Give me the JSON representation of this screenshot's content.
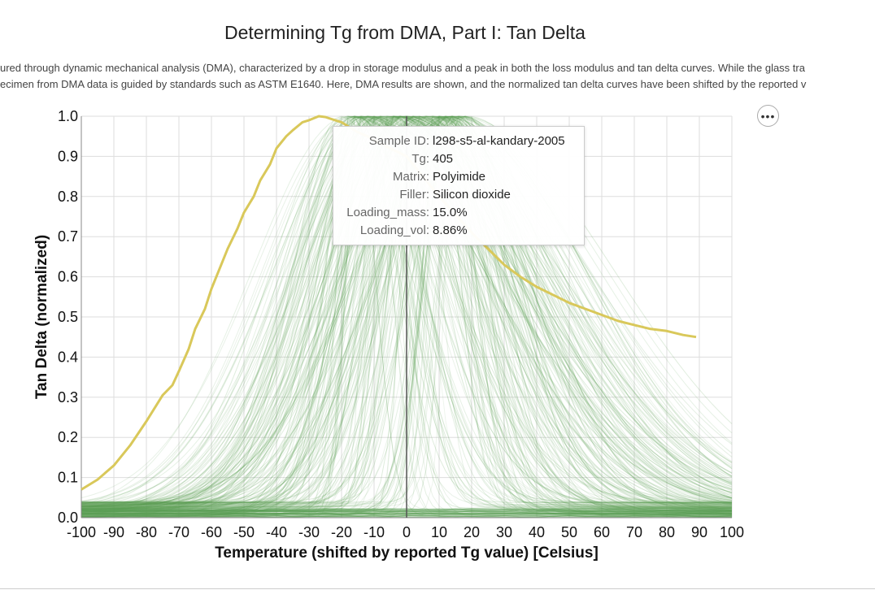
{
  "title": "Determining Tg from DMA, Part I: Tan Delta",
  "subtitle_lines": [
    "ured through dynamic mechanical analysis (DMA), characterized by a drop in storage modulus and a peak in both the loss modulus and tan delta curves. While the glass tra",
    "ecimen from DMA data is guided by standards such as ASTM E1640. Here, DMA results are shown, and the normalized tan delta curves have been shifted by the reported v"
  ],
  "menu_icon": "ellipsis-icon",
  "tooltip": {
    "rows": [
      {
        "key": "Sample ID:",
        "value": "l298-s5-al-kandary-2005"
      },
      {
        "key": "Tg:",
        "value": "405"
      },
      {
        "key": "Matrix:",
        "value": "Polyimide"
      },
      {
        "key": "Filler:",
        "value": "Silicon dioxide"
      },
      {
        "key": "Loading_mass:",
        "value": "15.0%"
      },
      {
        "key": "Loading_vol:",
        "value": "8.86%"
      }
    ]
  },
  "chart_data": {
    "type": "line",
    "xlabel": "Temperature (shifted by reported Tg value) [Celsius]",
    "ylabel": "Tan Delta (normalized)",
    "xlim": [
      -100,
      100
    ],
    "ylim": [
      0,
      1.0
    ],
    "x_ticks": [
      -100,
      -90,
      -80,
      -70,
      -60,
      -50,
      -40,
      -30,
      -20,
      -10,
      0,
      10,
      20,
      30,
      40,
      50,
      60,
      70,
      80,
      90,
      100
    ],
    "y_ticks": [
      0.0,
      0.1,
      0.2,
      0.3,
      0.4,
      0.5,
      0.6,
      0.7,
      0.8,
      0.9,
      1.0
    ],
    "y_tick_labels": [
      "0.0",
      "0.1",
      "0.2",
      "0.3",
      "0.4",
      "0.5",
      "0.6",
      "0.7",
      "0.8",
      "0.9",
      "1.0"
    ],
    "grid": true,
    "legend": "none",
    "background_color": "#5a9e52",
    "highlight_color": "#d9c85a",
    "hover_rule_x": 0,
    "highlighted_series": {
      "x": [
        -100,
        -95,
        -90,
        -85,
        -80,
        -75,
        -72,
        -70,
        -67,
        -65,
        -62,
        -60,
        -57,
        -55,
        -52,
        -50,
        -47,
        -45,
        -42,
        -40,
        -37,
        -35,
        -32,
        -30,
        -27,
        -25,
        -22,
        -20,
        -18,
        -15,
        -12,
        -10,
        0,
        10,
        20,
        25,
        30,
        35,
        40,
        45,
        50,
        55,
        60,
        65,
        70,
        75,
        80,
        85,
        89
      ],
      "y": [
        0.07,
        0.095,
        0.13,
        0.18,
        0.24,
        0.305,
        0.33,
        0.365,
        0.42,
        0.47,
        0.52,
        0.57,
        0.63,
        0.67,
        0.72,
        0.76,
        0.8,
        0.84,
        0.88,
        0.92,
        0.95,
        0.965,
        0.985,
        0.99,
        1.0,
        0.998,
        0.99,
        0.985,
        0.975,
        0.96,
        0.95,
        0.94,
        0.9,
        0.8,
        0.71,
        0.67,
        0.63,
        0.6,
        0.575,
        0.555,
        0.535,
        0.52,
        0.505,
        0.49,
        0.48,
        0.47,
        0.465,
        0.455,
        0.45
      ]
    }
  }
}
